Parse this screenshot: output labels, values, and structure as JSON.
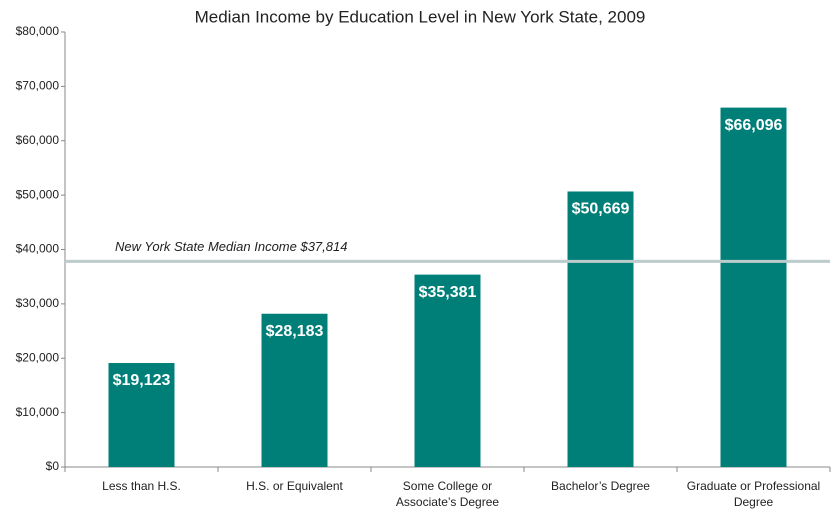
{
  "chart_data": {
    "type": "bar",
    "title": "Median Income by Education Level in New York State, 2009",
    "categories": [
      "Less than H.S.",
      "H.S. or Equivalent",
      "Some College or Associate’s Degree",
      "Bachelor’s Degree",
      "Graduate or Professional Degree"
    ],
    "values": [
      19123,
      28183,
      35381,
      50669,
      66096
    ],
    "value_labels": [
      "$19,123",
      "$28,183",
      "$35,381",
      "$50,669",
      "$66,096"
    ],
    "color": "#007f78",
    "ylim": [
      0,
      80000
    ],
    "yticks": [
      {
        "value": 0,
        "label": "$0"
      },
      {
        "value": 10000,
        "label": "$10,000"
      },
      {
        "value": 20000,
        "label": "$20,000"
      },
      {
        "value": 30000,
        "label": "$30,000"
      },
      {
        "value": 40000,
        "label": "$40,000"
      },
      {
        "value": 50000,
        "label": "$50,000"
      },
      {
        "value": 60000,
        "label": "$60,000"
      },
      {
        "value": 70000,
        "label": "$70,000"
      },
      {
        "value": 80000,
        "label": "$80,000"
      }
    ],
    "reference_line": {
      "value": 37814,
      "label": "New York State Median Income $37,814",
      "color": "#bccbcb"
    }
  }
}
